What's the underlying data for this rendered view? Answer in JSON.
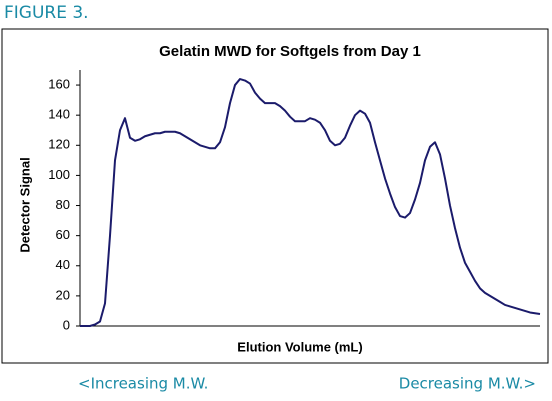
{
  "figure_label": "FIGURE 3.",
  "chart_data": {
    "type": "line",
    "title": "Gelatin MWD for Softgels from Day 1",
    "x_label": "Elution Volume (mL)",
    "y_label": "Detector Signal",
    "series": [
      {
        "color": "#1b1b6b",
        "values": [
          0,
          0,
          0,
          1,
          3,
          15,
          60,
          110,
          130,
          138,
          125,
          123,
          124,
          126,
          127,
          128,
          128,
          129,
          129,
          129,
          128,
          126,
          124,
          122,
          120,
          119,
          118,
          118,
          122,
          132,
          148,
          160,
          164,
          163,
          161,
          155,
          151,
          148,
          148,
          148,
          146,
          143,
          139,
          136,
          136,
          136,
          138,
          137,
          135,
          130,
          123,
          120,
          121,
          125,
          133,
          140,
          143,
          141,
          135,
          122,
          110,
          98,
          88,
          79,
          73,
          72,
          75,
          84,
          95,
          110,
          119,
          122,
          114,
          98,
          80,
          65,
          52,
          42,
          36,
          30,
          25,
          22,
          20,
          18,
          16,
          14,
          13,
          12,
          11,
          10,
          9,
          8.5,
          8
        ]
      }
    ],
    "ylim": [
      0,
      170
    ],
    "yticks": [
      0,
      20,
      40,
      60,
      80,
      100,
      120,
      140,
      160
    ],
    "grid": false
  },
  "footer": {
    "left": "<Increasing M.W.",
    "right": "Decreasing M.W.>"
  }
}
